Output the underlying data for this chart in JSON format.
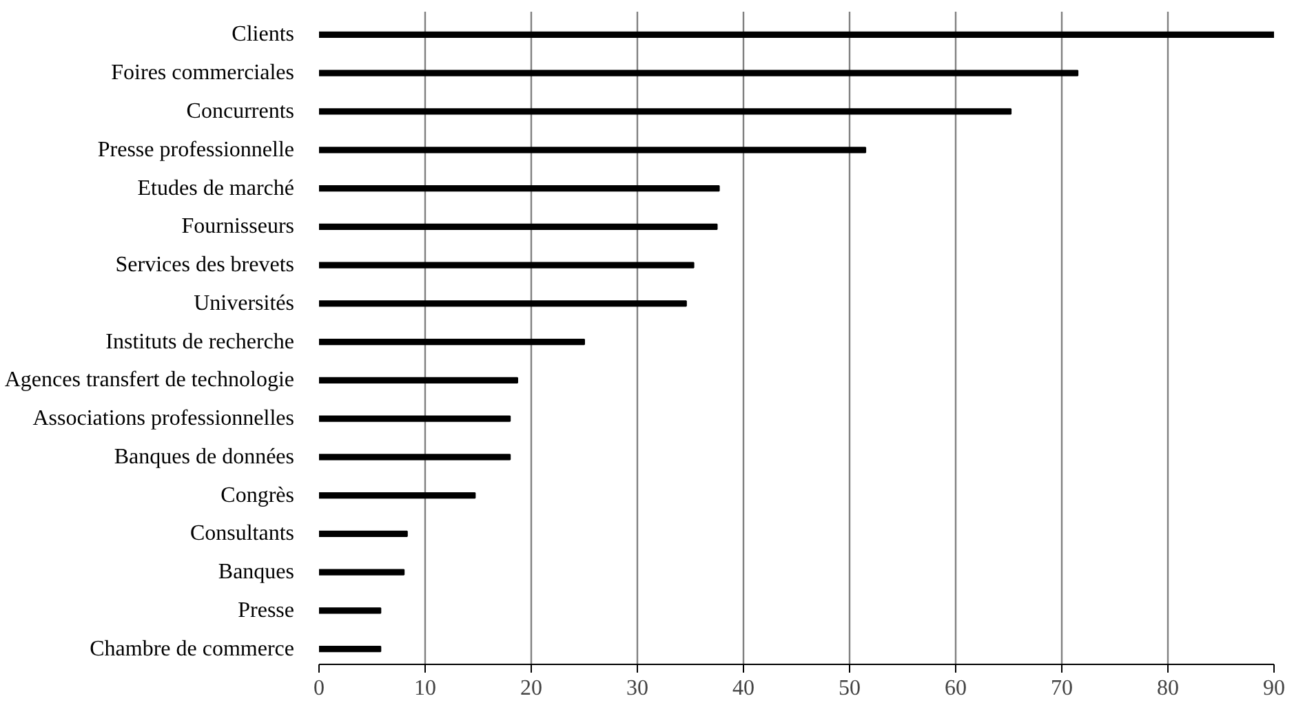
{
  "chart_data": {
    "type": "bar",
    "orientation": "horizontal",
    "categories": [
      "Clients",
      "Foires commerciales",
      "Concurrents",
      "Presse professionnelle",
      "Etudes de marché",
      "Fournisseurs",
      "Services des brevets",
      "Universités",
      "Instituts de recherche",
      "Agences transfert de technologie",
      "Associations professionnelles",
      "Banques de données",
      "Congrès",
      "Consultants",
      "Banques",
      "Presse",
      "Chambre de commerce"
    ],
    "values": [
      90,
      71.5,
      65.2,
      51.5,
      37.7,
      37.5,
      35.3,
      34.6,
      25,
      18.7,
      18,
      18,
      14.7,
      8.3,
      8,
      5.8,
      5.8
    ],
    "color": "#000000",
    "xlim": [
      0,
      90
    ],
    "xticks": [
      0,
      10,
      20,
      30,
      40,
      50,
      60,
      70,
      80,
      90
    ],
    "grid": "x"
  }
}
